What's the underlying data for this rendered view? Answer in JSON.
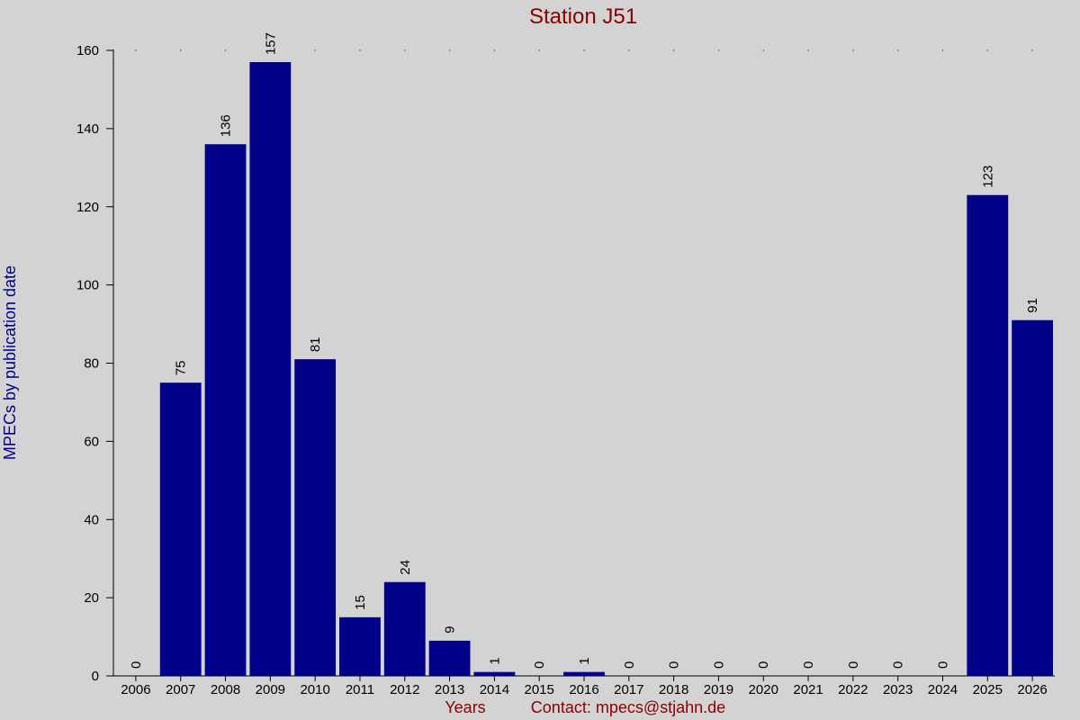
{
  "chart_data": {
    "type": "bar",
    "title": "Station J51",
    "xlabel": "Years",
    "ylabel": "MPECs by publication date",
    "footer_contact": "Contact: mpecs@stjahn.de",
    "categories": [
      "2006",
      "2007",
      "2008",
      "2009",
      "2010",
      "2011",
      "2012",
      "2013",
      "2014",
      "2015",
      "2016",
      "2017",
      "2018",
      "2019",
      "2020",
      "2021",
      "2022",
      "2023",
      "2024",
      "2025",
      "2026"
    ],
    "values": [
      0,
      75,
      136,
      157,
      81,
      15,
      24,
      9,
      1,
      0,
      1,
      0,
      0,
      0,
      0,
      0,
      0,
      0,
      0,
      123,
      91
    ],
    "ylim": [
      0,
      160
    ],
    "yticks": [
      0,
      20,
      40,
      60,
      80,
      100,
      120,
      140,
      160
    ],
    "grid": false,
    "colors": {
      "bar": "#000088",
      "title": "#8b0000",
      "xlabel": "#8b0000",
      "ylabel": "#00008b",
      "background": "#d3d3d3"
    }
  }
}
